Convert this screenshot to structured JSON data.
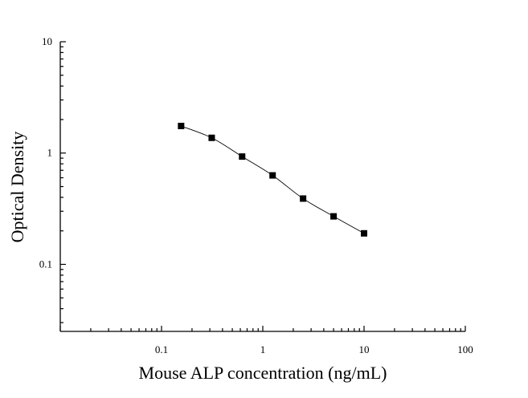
{
  "chart_data": {
    "type": "scatter",
    "title": "",
    "xlabel": "Mouse ALP concentration (ng/mL)",
    "ylabel": "Optical Density",
    "xscale": "log",
    "yscale": "log",
    "xlim": [
      0.01,
      100
    ],
    "ylim": [
      0.025,
      10
    ],
    "x_ticks": [
      0.1,
      1,
      10,
      100
    ],
    "x_tick_labels": [
      "0.1",
      "1",
      "10",
      "100"
    ],
    "y_ticks": [
      0.1,
      1,
      10
    ],
    "y_tick_labels": [
      "0.1",
      "1",
      "10"
    ],
    "grid": false,
    "legend": false,
    "series": [
      {
        "marker": "square",
        "color": "#000000",
        "fit_line": true,
        "x": [
          0.156,
          0.313,
          0.625,
          1.25,
          2.5,
          5,
          10
        ],
        "y": [
          1.75,
          1.37,
          0.93,
          0.63,
          0.39,
          0.27,
          0.19
        ]
      }
    ]
  }
}
